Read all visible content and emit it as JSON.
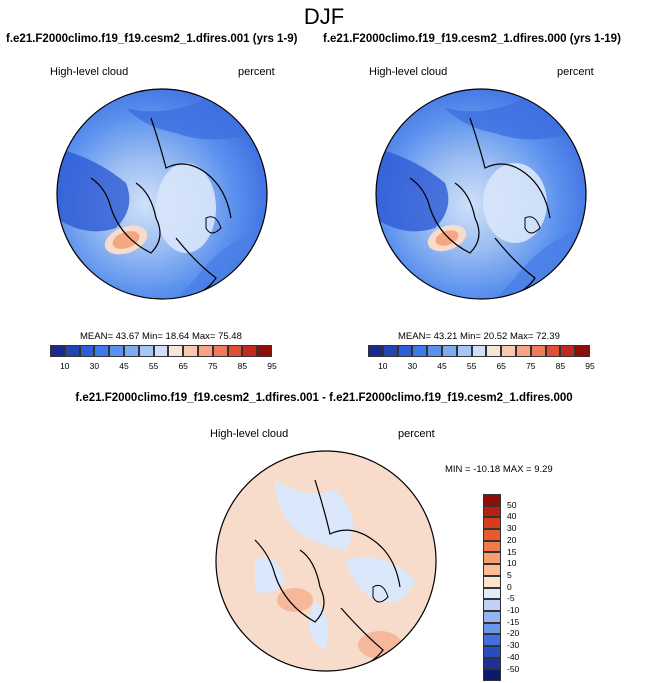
{
  "season": "DJF",
  "panels": [
    {
      "case_title": "f.e21.F2000climo.f19_f19.cesm2_1.dfires.001 (yrs 1-9)",
      "variable": "High-level cloud",
      "units": "percent",
      "stats": "MEAN=  43.67   Min=  18.64   Max=  75.48"
    },
    {
      "case_title": "f.e21.F2000climo.f19_f19.cesm2_1.dfires.000 (yrs 1-19)",
      "variable": "High-level cloud",
      "units": "percent",
      "stats": "MEAN=  43.21   Min=  20.52   Max=  72.39"
    }
  ],
  "colorbar_top": {
    "ticks": [
      "10",
      "30",
      "45",
      "55",
      "65",
      "75",
      "85",
      "95"
    ],
    "colors": [
      "#1a2a8c",
      "#2444b0",
      "#2e5fd6",
      "#3f78e8",
      "#5b91ee",
      "#7eaaf0",
      "#a6c6f5",
      "#cfe0fa",
      "#f6e6da",
      "#fac8ae",
      "#f8a384",
      "#ee7b5c",
      "#de5038",
      "#c22a1e",
      "#8e0e0a"
    ]
  },
  "diff_panel": {
    "title": "f.e21.F2000climo.f19_f19.cesm2_1.dfires.001 - f.e21.F2000climo.f19_f19.cesm2_1.dfires.000",
    "variable": "High-level cloud",
    "units": "percent",
    "stats": "MIN = -10.18  MAX =   9.29"
  },
  "colorbar_diff": {
    "ticks": [
      "50",
      "40",
      "30",
      "20",
      "15",
      "10",
      "5",
      "0",
      "-5",
      "-10",
      "-15",
      "-20",
      "-30",
      "-40",
      "-50"
    ],
    "colors": [
      "#8e0e0a",
      "#b8200f",
      "#d43d1c",
      "#e55a2e",
      "#f07a48",
      "#f69c6e",
      "#fabd98",
      "#fde2cc",
      "#dfeafb",
      "#bcd3f6",
      "#93b6f1",
      "#6a96ea",
      "#436fdd",
      "#2a4bc0",
      "#1c2f9a",
      "#0c1a6e"
    ]
  },
  "map_colors": {
    "blue_deep": "#2e5ad4",
    "blue_mid": "#4a80e6",
    "blue_light": "#9dbff2",
    "pale": "#d8e6fb",
    "orange": "#f5a784",
    "peach": "#f8dccb",
    "ice": "#dbe7fa"
  }
}
